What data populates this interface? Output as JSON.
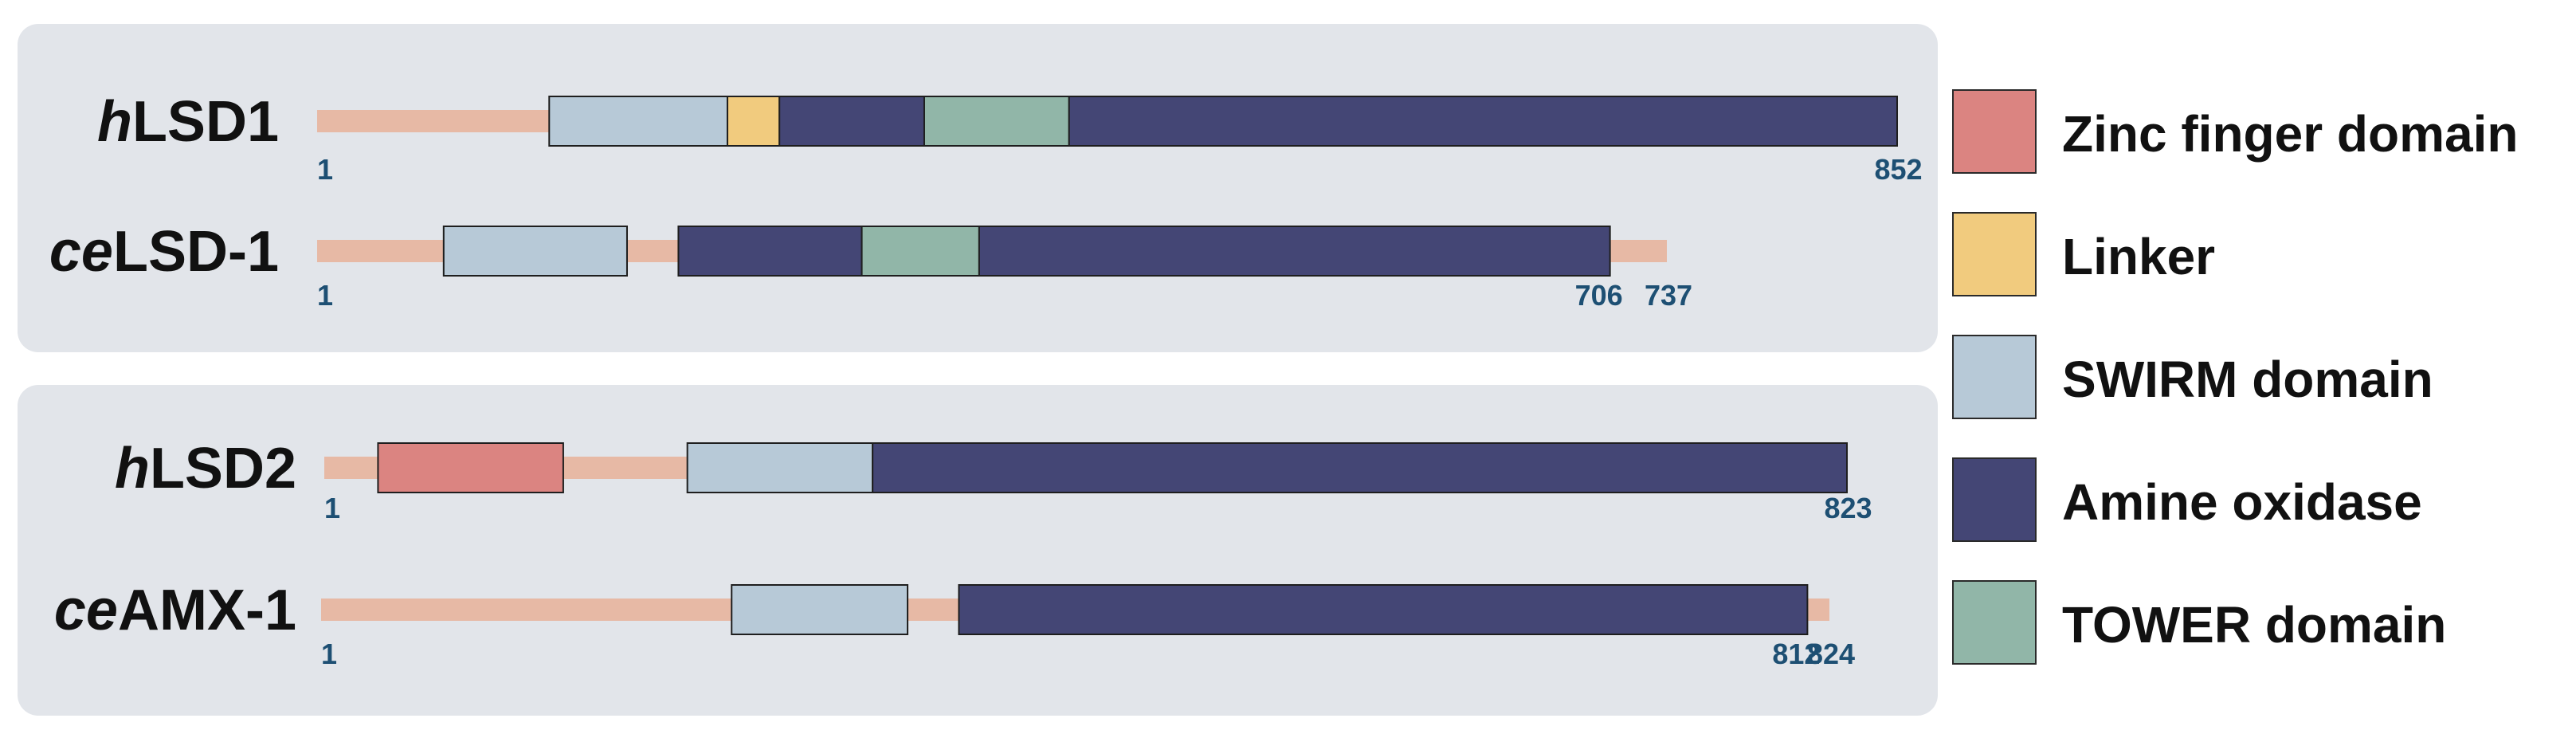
{
  "domain_colors": {
    "zinc": "#db8481",
    "linker": "#f1cb7e",
    "swirm": "#b7c9d7",
    "amine": "#444675",
    "tower": "#91b6a8",
    "backbone": "#e7b9a5"
  },
  "legend": [
    {
      "key": "zinc",
      "label": "Zinc finger domain"
    },
    {
      "key": "linker",
      "label": "Linker"
    },
    {
      "key": "swirm",
      "label": "SWIRM domain"
    },
    {
      "key": "amine",
      "label": "Amine oxidase"
    },
    {
      "key": "tower",
      "label": "TOWER domain"
    }
  ],
  "groups": [
    {
      "proteins": [
        {
          "prefix": "h",
          "name": "LSD1",
          "length": 852,
          "domains": [
            {
              "type": "swirm",
              "start": 126,
              "end": 222
            },
            {
              "type": "linker",
              "start": 222,
              "end": 250
            },
            {
              "type": "amine",
              "start": 250,
              "end": 328
            },
            {
              "type": "tower",
              "start": 328,
              "end": 406
            },
            {
              "type": "amine",
              "start": 406,
              "end": 852
            }
          ],
          "labels": [
            "1",
            "852"
          ]
        },
        {
          "prefix": "ce",
          "name": "LSD-1",
          "length": 737,
          "domains": [
            {
              "type": "swirm",
              "start": 70,
              "end": 170
            },
            {
              "type": "amine",
              "start": 198,
              "end": 298
            },
            {
              "type": "tower",
              "start": 298,
              "end": 362
            },
            {
              "type": "amine",
              "start": 362,
              "end": 706
            }
          ],
          "labels": [
            "1",
            "706",
            "737"
          ]
        }
      ]
    },
    {
      "proteins": [
        {
          "prefix": "h",
          "name": "LSD2",
          "length": 823,
          "domains": [
            {
              "type": "zinc",
              "start": 30,
              "end": 130
            },
            {
              "type": "swirm",
              "start": 197,
              "end": 297
            },
            {
              "type": "amine",
              "start": 297,
              "end": 823
            }
          ],
          "labels": [
            "1",
            "823"
          ]
        },
        {
          "prefix": "ce",
          "name": "AMX-1",
          "length": 824,
          "domains": [
            {
              "type": "swirm",
              "start": 225,
              "end": 321
            },
            {
              "type": "amine",
              "start": 349,
              "end": 812
            }
          ],
          "labels": [
            "1",
            "812",
            "824"
          ]
        }
      ]
    }
  ]
}
